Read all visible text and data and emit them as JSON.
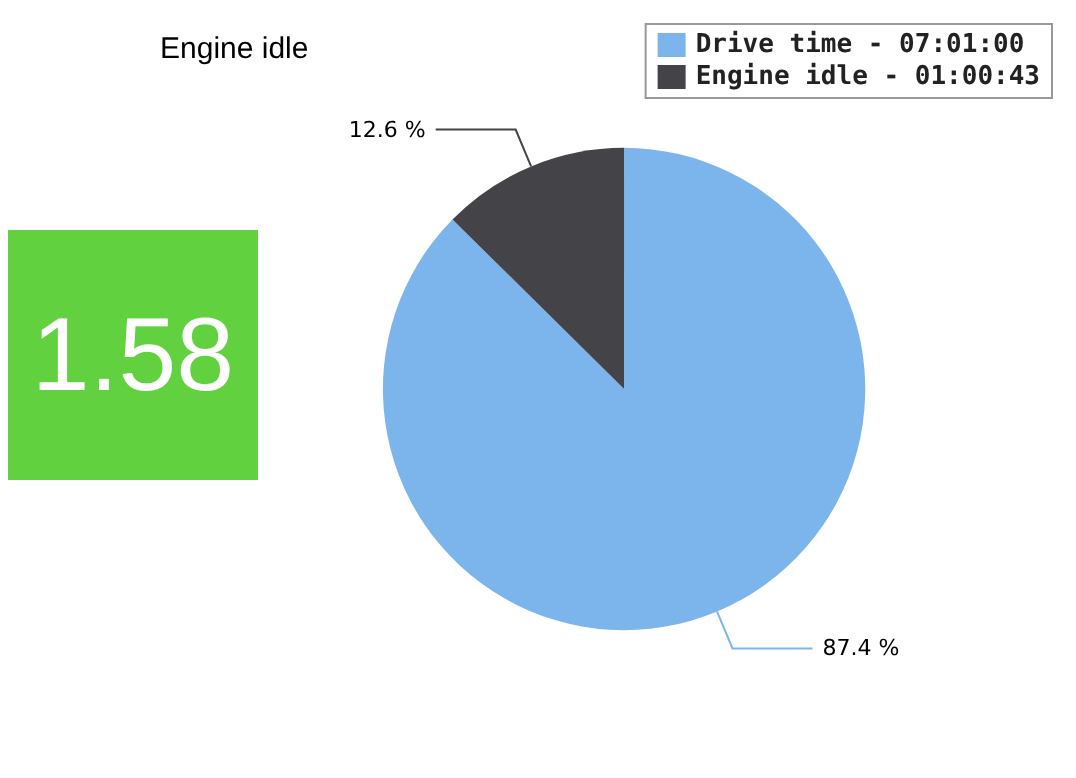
{
  "chart_data": {
    "type": "pie",
    "title": "Engine idle",
    "categories": [
      "Drive time - 07:01:00",
      "Engine idle - 01:00:43"
    ],
    "values": [
      87.4,
      12.6
    ],
    "colors": [
      "#7cb5ec",
      "#434348"
    ],
    "value_labels": [
      "87.4 %",
      "12.6 %"
    ],
    "annotations": [
      "1.58"
    ],
    "legend": "top right"
  }
}
